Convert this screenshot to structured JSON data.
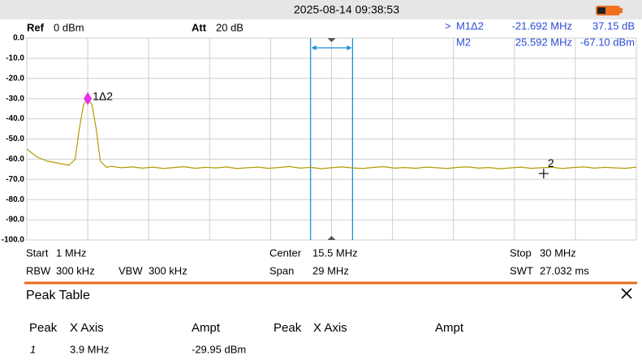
{
  "header": {
    "datetime": "2025-08-14 09:38:53"
  },
  "settings": {
    "ref_label": "Ref",
    "ref": "0 dBm",
    "att_label": "Att",
    "att": "20 dB"
  },
  "marker_table": {
    "rows": [
      {
        "active": ">",
        "name": "M1Δ2",
        "x": "-21.692 MHz",
        "y": "37.15 dB"
      },
      {
        "name": "M2",
        "x": "25.592 MHz",
        "y": "-67.10 dBm"
      }
    ]
  },
  "chart_data": {
    "type": "line",
    "color": "#b39b00",
    "xlim": [
      1,
      30
    ],
    "ylim": [
      -100,
      0
    ],
    "xticks": [
      1,
      3.9,
      6.8,
      9.7,
      12.6,
      15.5,
      18.4,
      21.3,
      24.2,
      27.1,
      30
    ],
    "yticks": [
      {
        "value": 0,
        "label": "0.0"
      },
      {
        "value": -10,
        "label": "-10.0"
      },
      {
        "value": -20,
        "label": "-20.0"
      },
      {
        "value": -30,
        "label": "-30.0"
      },
      {
        "value": -40,
        "label": "-40.0"
      },
      {
        "value": -50,
        "label": "-50.0"
      },
      {
        "value": -60,
        "label": "-60.0"
      },
      {
        "value": -70,
        "label": "-70.0"
      },
      {
        "value": -80,
        "label": "-80.0"
      },
      {
        "value": -90,
        "label": "-90.0"
      },
      {
        "value": -100,
        "label": "-100.0"
      }
    ],
    "grid": true,
    "x": [
      1,
      1.5,
      2,
      2.5,
      3,
      3.3,
      3.5,
      3.7,
      3.9,
      4.1,
      4.3,
      4.5,
      4.8,
      5,
      5.5,
      6,
      6.5,
      7,
      7.5,
      8,
      8.5,
      9,
      9.5,
      10,
      10.5,
      11,
      11.5,
      12,
      12.5,
      13,
      13.5,
      14,
      14.5,
      15,
      15.5,
      16,
      16.5,
      17,
      17.5,
      18,
      18.5,
      19,
      19.5,
      20,
      20.5,
      21,
      21.5,
      22,
      22.5,
      23,
      23.5,
      24,
      24.5,
      25,
      25.5,
      26,
      26.5,
      27,
      27.5,
      28,
      28.5,
      29,
      29.5,
      30
    ],
    "values": [
      -55,
      -59,
      -61,
      -62,
      -63,
      -60,
      -45,
      -33,
      -29.95,
      -33,
      -45,
      -61,
      -64,
      -63.5,
      -64.2,
      -63.8,
      -64.4,
      -63.9,
      -64.6,
      -64.1,
      -63.7,
      -64.5,
      -64.0,
      -64.3,
      -63.8,
      -64.6,
      -64.2,
      -63.9,
      -64.5,
      -64.1,
      -63.6,
      -64.4,
      -64.0,
      -64.7,
      -64.2,
      -63.8,
      -64.3,
      -64.6,
      -64.0,
      -63.7,
      -64.4,
      -64.1,
      -64.5,
      -63.9,
      -64.2,
      -64.6,
      -64.0,
      -63.8,
      -64.4,
      -64.1,
      -64.7,
      -64.3,
      -63.9,
      -64.5,
      -64.2,
      -64.0,
      -64.6,
      -64.1,
      -63.8,
      -64.4,
      -64.0,
      -64.3,
      -64.5,
      -63.9
    ],
    "markers": [
      {
        "label": "1Δ2",
        "x": 3.9,
        "y": -29.95,
        "shape": "diamond",
        "color": "#e82ee8"
      },
      {
        "label": "2",
        "x": 25.592,
        "y": -67.1,
        "shape": "cross",
        "color": "#000000"
      }
    ],
    "band": {
      "x": [
        14.5,
        16.5
      ],
      "color": "#1a8fd6"
    }
  },
  "footer": [
    {
      "label": "Start",
      "value": "1 MHz"
    },
    {
      "label": "Center",
      "value": "15.5 MHz"
    },
    {
      "label": "Stop",
      "value": "30 MHz"
    },
    {
      "label": "RBW",
      "value": "300 kHz"
    },
    {
      "label": "VBW",
      "value": "300 kHz"
    },
    {
      "label": "Span",
      "value": "29 MHz"
    },
    {
      "label": "SWT",
      "value": "27.032 ms"
    }
  ],
  "peak_table": {
    "title": "Peak Table",
    "columns": [
      "Peak",
      "X Axis",
      "Ampt",
      "Peak",
      "X Axis",
      "Ampt"
    ],
    "rows": [
      [
        "1",
        "3.9 MHz",
        "-29.95 dBm"
      ]
    ]
  }
}
